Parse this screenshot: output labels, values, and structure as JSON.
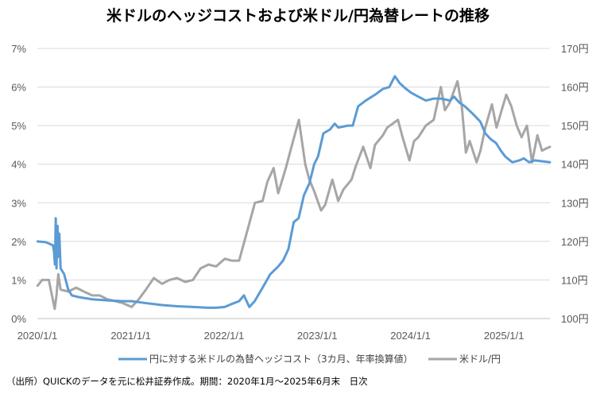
{
  "chart_data": {
    "type": "line",
    "title": "米ドルのヘッジコストおよび米ドル/円為替レートの推移",
    "x_tick_labels": [
      "2020/1/1",
      "2021/1/1",
      "2022/1/1",
      "2023/1/1",
      "2024/1/1",
      "2025/1/1"
    ],
    "x_ticks": [
      "2020-01-01",
      "2021-01-01",
      "2022-01-01",
      "2023-01-01",
      "2024-01-01",
      "2025-01-01"
    ],
    "x_range": [
      "2020-01-01",
      "2025-06-30"
    ],
    "y_left": {
      "range": [
        0,
        7
      ],
      "tick_labels": [
        "0%",
        "1%",
        "2%",
        "3%",
        "4%",
        "5%",
        "6%",
        "7%"
      ]
    },
    "y_right": {
      "range": [
        100,
        170
      ],
      "tick_labels": [
        "100円",
        "110円",
        "120円",
        "130円",
        "140円",
        "150円",
        "160円",
        "170円"
      ]
    },
    "grid": true,
    "legend_position": "bottom",
    "series": [
      {
        "name": "円に対する米ドルの為替ヘッジコスト（3カ月、年率換算値）",
        "axis": "left",
        "color": "#5b9bd5",
        "points": [
          [
            "2020-01-02",
            2.0
          ],
          [
            "2020-02-03",
            1.98
          ],
          [
            "2020-03-02",
            1.9
          ],
          [
            "2020-03-06",
            1.75
          ],
          [
            "2020-03-10",
            1.4
          ],
          [
            "2020-03-13",
            2.6
          ],
          [
            "2020-03-16",
            1.3
          ],
          [
            "2020-03-20",
            2.4
          ],
          [
            "2020-03-24",
            1.6
          ],
          [
            "2020-03-27",
            2.2
          ],
          [
            "2020-04-01",
            1.3
          ],
          [
            "2020-04-15",
            1.15
          ],
          [
            "2020-05-01",
            0.75
          ],
          [
            "2020-05-15",
            0.6
          ],
          [
            "2020-06-15",
            0.55
          ],
          [
            "2020-08-03",
            0.5
          ],
          [
            "2020-10-01",
            0.47
          ],
          [
            "2020-12-01",
            0.45
          ],
          [
            "2021-01-04",
            0.45
          ],
          [
            "2021-03-01",
            0.4
          ],
          [
            "2021-05-03",
            0.35
          ],
          [
            "2021-07-01",
            0.32
          ],
          [
            "2021-09-01",
            0.3
          ],
          [
            "2021-11-01",
            0.28
          ],
          [
            "2021-12-01",
            0.28
          ],
          [
            "2022-01-04",
            0.3
          ],
          [
            "2022-02-01",
            0.38
          ],
          [
            "2022-03-01",
            0.45
          ],
          [
            "2022-03-20",
            0.6
          ],
          [
            "2022-04-10",
            0.3
          ],
          [
            "2022-05-01",
            0.45
          ],
          [
            "2022-06-01",
            0.8
          ],
          [
            "2022-07-01",
            1.15
          ],
          [
            "2022-08-01",
            1.35
          ],
          [
            "2022-08-20",
            1.5
          ],
          [
            "2022-09-10",
            1.8
          ],
          [
            "2022-10-01",
            2.5
          ],
          [
            "2022-10-20",
            2.6
          ],
          [
            "2022-11-10",
            3.2
          ],
          [
            "2022-12-01",
            3.5
          ],
          [
            "2022-12-20",
            4.0
          ],
          [
            "2023-01-04",
            4.2
          ],
          [
            "2023-01-25",
            4.8
          ],
          [
            "2023-02-20",
            4.9
          ],
          [
            "2023-03-10",
            5.05
          ],
          [
            "2023-03-25",
            4.95
          ],
          [
            "2023-05-01",
            5.0
          ],
          [
            "2023-05-20",
            5.0
          ],
          [
            "2023-06-10",
            5.5
          ],
          [
            "2023-07-10",
            5.65
          ],
          [
            "2023-08-15",
            5.8
          ],
          [
            "2023-09-15",
            5.95
          ],
          [
            "2023-10-10",
            6.0
          ],
          [
            "2023-11-01",
            6.28
          ],
          [
            "2023-11-20",
            6.1
          ],
          [
            "2023-12-15",
            5.95
          ],
          [
            "2024-01-04",
            5.85
          ],
          [
            "2024-02-01",
            5.75
          ],
          [
            "2024-03-01",
            5.65
          ],
          [
            "2024-04-01",
            5.7
          ],
          [
            "2024-05-01",
            5.7
          ],
          [
            "2024-06-03",
            5.65
          ],
          [
            "2024-06-20",
            5.75
          ],
          [
            "2024-07-10",
            5.6
          ],
          [
            "2024-08-01",
            5.5
          ],
          [
            "2024-09-02",
            5.3
          ],
          [
            "2024-10-01",
            5.1
          ],
          [
            "2024-10-20",
            4.8
          ],
          [
            "2024-11-10",
            4.65
          ],
          [
            "2024-12-01",
            4.55
          ],
          [
            "2024-12-20",
            4.35
          ],
          [
            "2025-01-06",
            4.2
          ],
          [
            "2025-02-03",
            4.05
          ],
          [
            "2025-03-03",
            4.1
          ],
          [
            "2025-03-20",
            4.15
          ],
          [
            "2025-04-10",
            4.05
          ],
          [
            "2025-05-01",
            4.1
          ],
          [
            "2025-06-30",
            4.05
          ]
        ]
      },
      {
        "name": "米ドル/円",
        "axis": "right",
        "color": "#a6a6a6",
        "points": [
          [
            "2020-01-02",
            108.5
          ],
          [
            "2020-01-20",
            110.0
          ],
          [
            "2020-02-15",
            110.0
          ],
          [
            "2020-03-09",
            102.5
          ],
          [
            "2020-03-16",
            106.0
          ],
          [
            "2020-03-23",
            111.5
          ],
          [
            "2020-04-01",
            107.5
          ],
          [
            "2020-05-01",
            107.0
          ],
          [
            "2020-06-01",
            108.0
          ],
          [
            "2020-07-01",
            107.0
          ],
          [
            "2020-08-03",
            106.0
          ],
          [
            "2020-09-01",
            106.0
          ],
          [
            "2020-10-01",
            105.0
          ],
          [
            "2020-11-02",
            104.5
          ],
          [
            "2020-12-01",
            104.0
          ],
          [
            "2021-01-04",
            103.0
          ],
          [
            "2021-02-01",
            105.0
          ],
          [
            "2021-03-01",
            107.5
          ],
          [
            "2021-04-01",
            110.5
          ],
          [
            "2021-05-03",
            109.0
          ],
          [
            "2021-06-01",
            110.0
          ],
          [
            "2021-07-01",
            110.5
          ],
          [
            "2021-08-02",
            109.5
          ],
          [
            "2021-09-01",
            110.0
          ],
          [
            "2021-10-01",
            113.0
          ],
          [
            "2021-11-01",
            114.0
          ],
          [
            "2021-12-01",
            113.5
          ],
          [
            "2022-01-04",
            115.5
          ],
          [
            "2022-02-01",
            115.0
          ],
          [
            "2022-03-01",
            115.0
          ],
          [
            "2022-04-01",
            122.5
          ],
          [
            "2022-05-02",
            130.0
          ],
          [
            "2022-06-01",
            130.5
          ],
          [
            "2022-06-20",
            135.5
          ],
          [
            "2022-07-14",
            139.0
          ],
          [
            "2022-08-01",
            132.5
          ],
          [
            "2022-08-31",
            139.0
          ],
          [
            "2022-09-20",
            144.0
          ],
          [
            "2022-10-21",
            151.5
          ],
          [
            "2022-11-15",
            140.0
          ],
          [
            "2022-12-01",
            136.0
          ],
          [
            "2022-12-20",
            133.0
          ],
          [
            "2023-01-16",
            128.0
          ],
          [
            "2023-02-01",
            129.5
          ],
          [
            "2023-03-01",
            136.0
          ],
          [
            "2023-03-24",
            130.5
          ],
          [
            "2023-04-14",
            133.5
          ],
          [
            "2023-05-15",
            136.0
          ],
          [
            "2023-06-01",
            139.5
          ],
          [
            "2023-06-30",
            144.5
          ],
          [
            "2023-07-28",
            139.0
          ],
          [
            "2023-08-15",
            145.0
          ],
          [
            "2023-09-15",
            147.5
          ],
          [
            "2023-10-02",
            149.5
          ],
          [
            "2023-11-13",
            151.5
          ],
          [
            "2023-12-01",
            147.0
          ],
          [
            "2023-12-28",
            141.0
          ],
          [
            "2024-01-15",
            146.0
          ],
          [
            "2024-02-01",
            147.0
          ],
          [
            "2024-03-01",
            150.0
          ],
          [
            "2024-04-01",
            151.5
          ],
          [
            "2024-04-29",
            160.0
          ],
          [
            "2024-05-15",
            154.0
          ],
          [
            "2024-06-03",
            156.0
          ],
          [
            "2024-07-03",
            161.5
          ],
          [
            "2024-07-20",
            155.0
          ],
          [
            "2024-08-05",
            143.0
          ],
          [
            "2024-08-20",
            146.0
          ],
          [
            "2024-09-16",
            140.5
          ],
          [
            "2024-10-01",
            143.5
          ],
          [
            "2024-10-20",
            149.5
          ],
          [
            "2024-11-15",
            155.5
          ],
          [
            "2024-12-03",
            149.5
          ],
          [
            "2025-01-10",
            158.0
          ],
          [
            "2025-01-30",
            155.0
          ],
          [
            "2025-02-20",
            150.0
          ],
          [
            "2025-03-11",
            147.0
          ],
          [
            "2025-04-01",
            150.0
          ],
          [
            "2025-04-21",
            140.5
          ],
          [
            "2025-05-12",
            147.5
          ],
          [
            "2025-05-30",
            143.5
          ],
          [
            "2025-06-13",
            144.0
          ],
          [
            "2025-06-30",
            144.5
          ]
        ]
      }
    ]
  },
  "source_note": "（出所）QUICKのデータを元に松井証券作成。期間：2020年1月～2025年6月末　日次"
}
